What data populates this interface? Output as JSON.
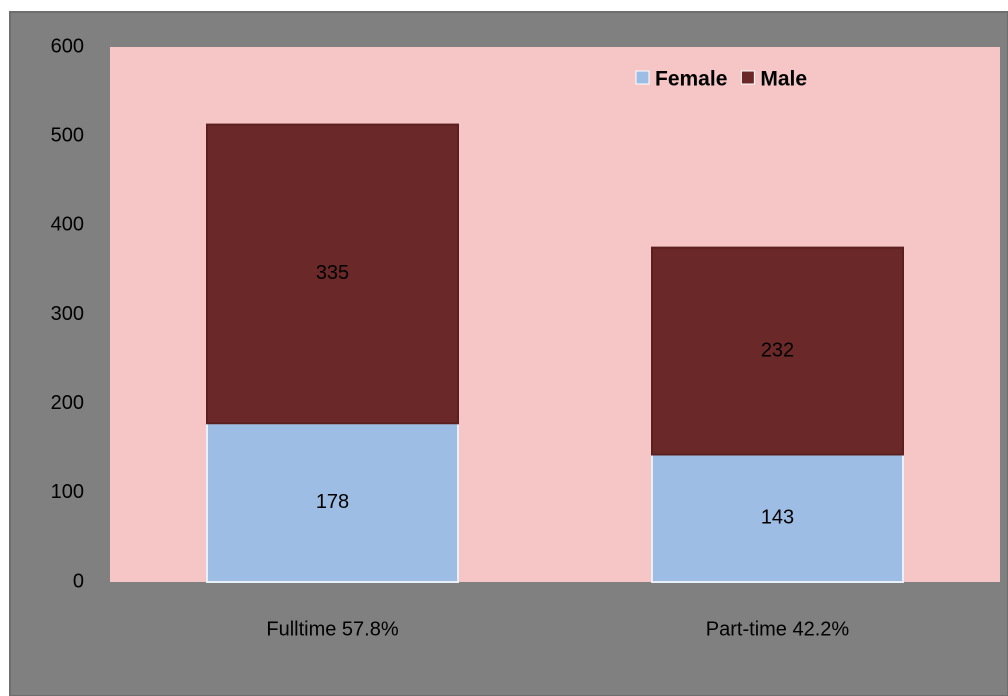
{
  "chart_data": {
    "type": "stacked_bar",
    "categories": [
      "Fulltime 57.8%",
      "Part-time 42.2%"
    ],
    "series": [
      {
        "name": "Female",
        "color": "#9dbde4",
        "values": [
          178,
          143
        ]
      },
      {
        "name": "Male",
        "color": "#6b2828",
        "values": [
          335,
          232
        ]
      }
    ],
    "ylim": [
      0,
      600
    ],
    "yticks": [
      0,
      100,
      200,
      300,
      400,
      500,
      600
    ],
    "legend": "top-right",
    "grid": false
  }
}
